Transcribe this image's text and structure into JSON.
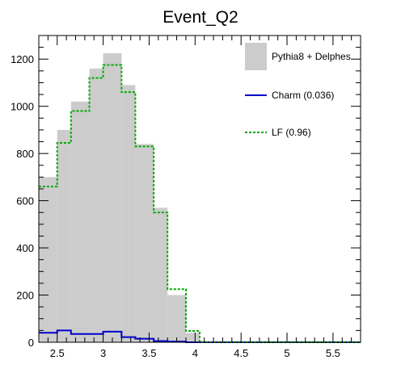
{
  "chart_data": {
    "type": "bar",
    "title": "Event_Q2",
    "xlabel": "",
    "ylabel": "",
    "xlim": [
      2.3,
      5.8
    ],
    "ylim": [
      0,
      1300
    ],
    "xticks": [
      "2.5",
      "3",
      "3.5",
      "4",
      "4.5",
      "5",
      "5.5"
    ],
    "yticks": [
      "0",
      "200",
      "400",
      "600",
      "800",
      "1000",
      "1200"
    ],
    "bin_edges": [
      2.3,
      2.5,
      2.65,
      2.85,
      3.0,
      3.2,
      3.35,
      3.55,
      3.7,
      3.9,
      4.05
    ],
    "legend_position": "top-right",
    "grid": false,
    "series": [
      {
        "name": "Pythia8 + Delphes",
        "style": "filled",
        "color": "#cccccc",
        "values": [
          700,
          900,
          1020,
          1160,
          1225,
          1090,
          840,
          570,
          200,
          40
        ]
      },
      {
        "name": "Charm (0.036)",
        "style": "step-solid",
        "color": "#0000cc",
        "values": [
          40,
          50,
          35,
          35,
          45,
          22,
          15,
          5,
          3,
          0
        ]
      },
      {
        "name": "LF (0.96)",
        "style": "step-dashed",
        "color": "#00aa00",
        "values": [
          660,
          845,
          980,
          1120,
          1175,
          1060,
          830,
          550,
          225,
          48
        ]
      }
    ]
  }
}
